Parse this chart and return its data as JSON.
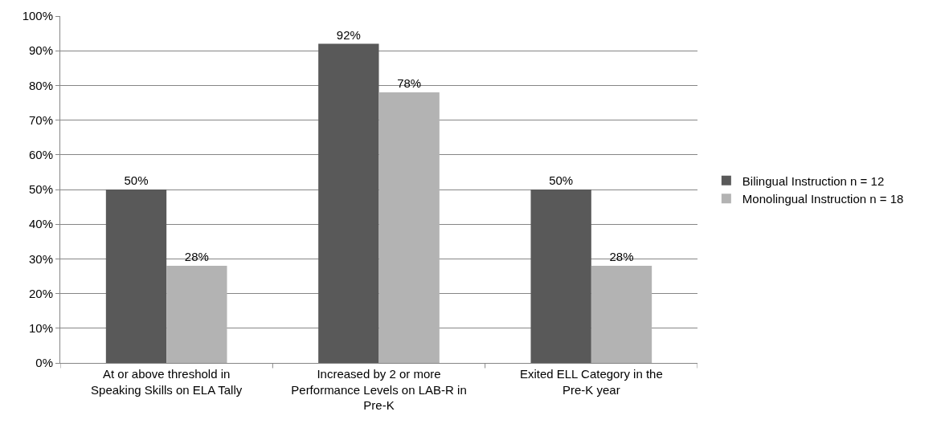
{
  "chart_data": {
    "type": "bar",
    "categories": [
      "At or above threshold in Speaking Skills on ELA Tally",
      "Increased by 2 or more Performance Levels on LAB-R in Pre-K",
      "Exited ELL Category in the Pre-K year"
    ],
    "series": [
      {
        "name": "Bilingual Instruction n = 12",
        "color": "#595959",
        "values": [
          50,
          92,
          50
        ],
        "value_labels": [
          "50%",
          "92%",
          "50%"
        ]
      },
      {
        "name": "Monolingual Instruction n = 18",
        "color": "#b3b3b3",
        "values": [
          28,
          78,
          28
        ],
        "value_labels": [
          "28%",
          "78%",
          "28%"
        ]
      }
    ],
    "ylim": [
      0,
      100
    ],
    "yticks": [
      {
        "value": 0,
        "label": "0%"
      },
      {
        "value": 10,
        "label": "10%"
      },
      {
        "value": 20,
        "label": "20%"
      },
      {
        "value": 30,
        "label": "30%"
      },
      {
        "value": 40,
        "label": "40%"
      },
      {
        "value": 50,
        "label": "50%"
      },
      {
        "value": 60,
        "label": "60%"
      },
      {
        "value": 70,
        "label": "70%"
      },
      {
        "value": 80,
        "label": "80%"
      },
      {
        "value": 90,
        "label": "90%"
      },
      {
        "value": 100,
        "label": "100%"
      }
    ],
    "grid": "y",
    "legend": "right"
  }
}
